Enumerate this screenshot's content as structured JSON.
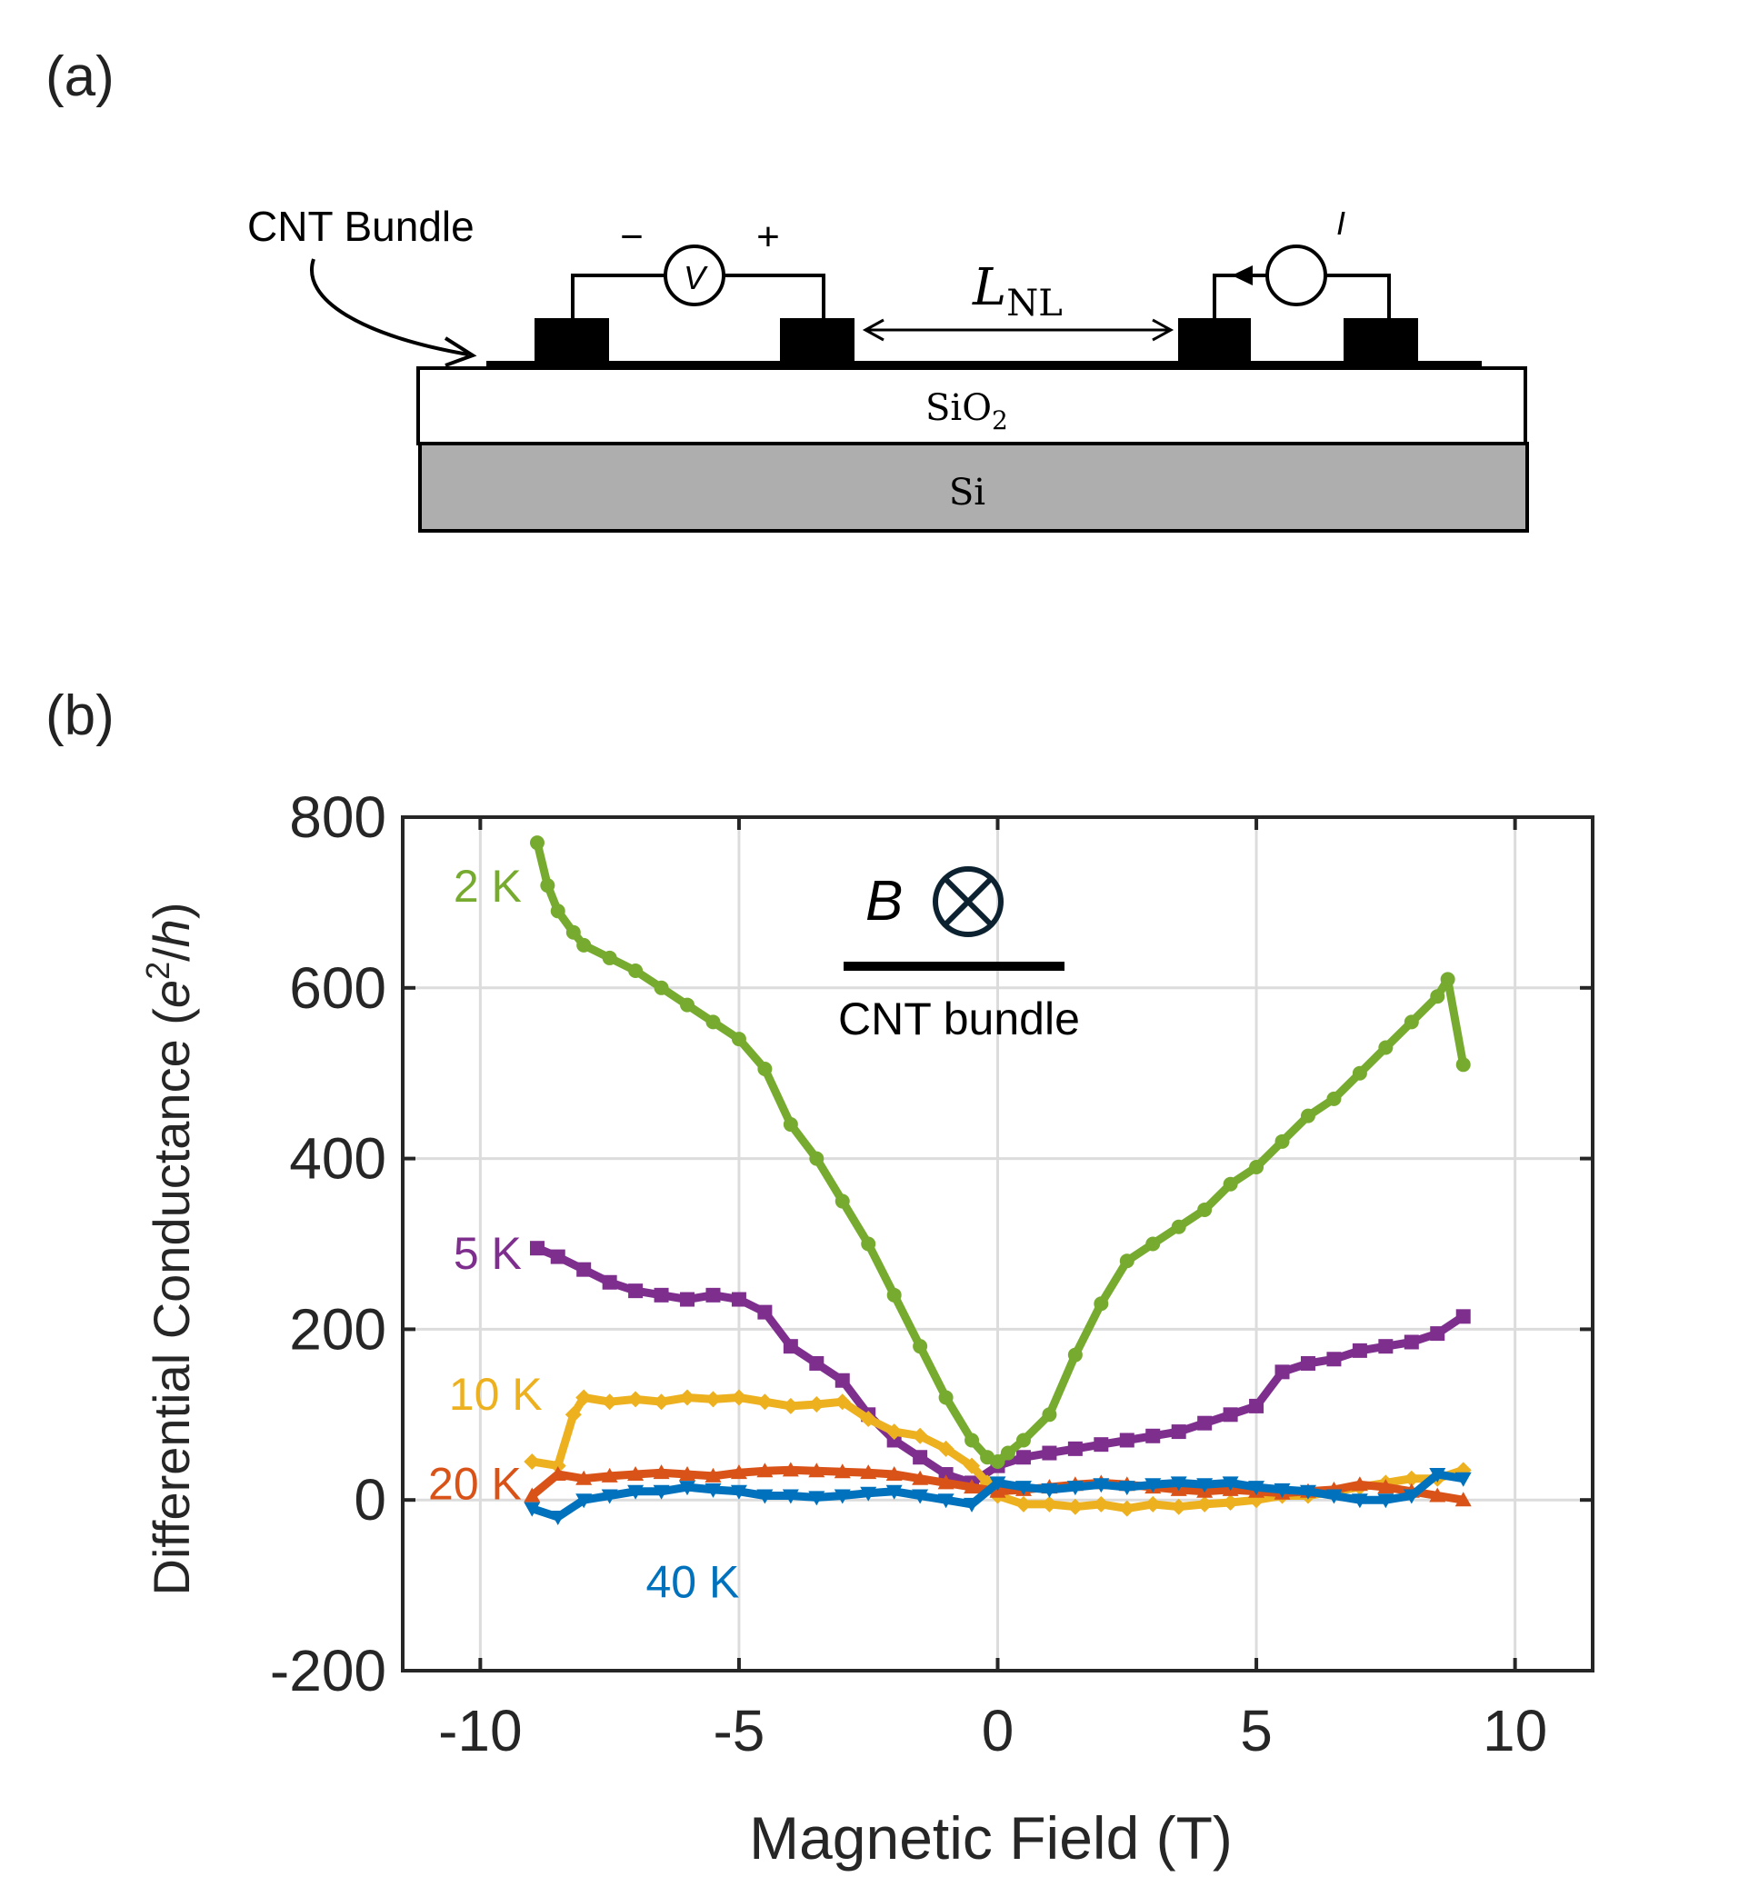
{
  "panel_a": {
    "label": "(a)",
    "cnt_label": "CNT Bundle",
    "minus": "−",
    "plus": "+",
    "voltmeter": "V",
    "current": "I",
    "length_main": "L",
    "length_sub": "NL",
    "sio2_main": "SiO",
    "sio2_sub": "2",
    "si": "Si"
  },
  "panel_b": {
    "label": "(b)",
    "inset_b": "B",
    "inset_caption": "CNT bundle"
  },
  "colors": {
    "2 K": "#76ab2f",
    "5 K": "#7e2f8e",
    "10 K": "#edb120",
    "20 K": "#d95319",
    "40 K": "#0072bd"
  },
  "chart_data": {
    "type": "line",
    "xlabel": "Magnetic Field (T)",
    "ylabel_main": "Differential Conductance (",
    "ylabel_e": "e",
    "ylabel_sup": "2",
    "ylabel_slash": "/",
    "ylabel_h": "h",
    "ylabel_close": ")",
    "xlim": [
      -11.5,
      11.5
    ],
    "ylim": [
      -200,
      800
    ],
    "xticks": [
      -10,
      -5,
      0,
      5,
      10
    ],
    "yticks": [
      -200,
      0,
      200,
      400,
      600,
      800
    ],
    "grid": true,
    "series": [
      {
        "name": "2 K",
        "marker": "dot",
        "x": [
          -8.9,
          -8.7,
          -8.5,
          -8.2,
          -8.0,
          -7.5,
          -7.0,
          -6.5,
          -6.0,
          -5.5,
          -5.0,
          -4.5,
          -4.0,
          -3.5,
          -3.0,
          -2.5,
          -2.0,
          -1.5,
          -1.0,
          -0.5,
          -0.2,
          0.0,
          0.2,
          0.5,
          1.0,
          1.5,
          2.0,
          2.5,
          3.0,
          3.5,
          4.0,
          4.5,
          5.0,
          5.5,
          6.0,
          6.5,
          7.0,
          7.5,
          8.0,
          8.5,
          8.7,
          9.0
        ],
        "y": [
          770,
          720,
          690,
          665,
          650,
          635,
          620,
          600,
          580,
          560,
          540,
          505,
          440,
          400,
          350,
          300,
          240,
          180,
          120,
          70,
          50,
          45,
          55,
          70,
          100,
          170,
          230,
          280,
          300,
          320,
          340,
          370,
          390,
          420,
          450,
          470,
          500,
          530,
          560,
          590,
          610,
          510
        ]
      },
      {
        "name": "5 K",
        "marker": "square",
        "x": [
          -8.9,
          -8.5,
          -8.0,
          -7.5,
          -7.0,
          -6.5,
          -6.0,
          -5.5,
          -5.0,
          -4.5,
          -4.0,
          -3.5,
          -3.0,
          -2.5,
          -2.0,
          -1.5,
          -1.0,
          -0.5,
          0.0,
          0.5,
          1.0,
          1.5,
          2.0,
          2.5,
          3.0,
          3.5,
          4.0,
          4.5,
          5.0,
          5.5,
          6.0,
          6.5,
          7.0,
          7.5,
          8.0,
          8.5,
          9.0
        ],
        "y": [
          295,
          285,
          270,
          255,
          245,
          240,
          235,
          240,
          235,
          220,
          180,
          160,
          140,
          100,
          70,
          50,
          30,
          20,
          40,
          50,
          55,
          60,
          65,
          70,
          75,
          80,
          90,
          100,
          110,
          150,
          160,
          165,
          175,
          180,
          185,
          195,
          215
        ]
      },
      {
        "name": "10 K",
        "marker": "diamond",
        "x": [
          -9.0,
          -8.5,
          -8.2,
          -8.0,
          -7.5,
          -7.0,
          -6.5,
          -6.0,
          -5.5,
          -5.0,
          -4.5,
          -4.0,
          -3.5,
          -3.0,
          -2.5,
          -2.0,
          -1.5,
          -1.0,
          -0.5,
          -0.2,
          0.0,
          0.5,
          1.0,
          1.5,
          2.0,
          2.5,
          3.0,
          3.5,
          4.0,
          4.5,
          5.0,
          5.5,
          6.0,
          6.5,
          7.0,
          7.5,
          8.0,
          8.5,
          9.0
        ],
        "y": [
          45,
          40,
          100,
          120,
          115,
          118,
          115,
          120,
          118,
          120,
          115,
          110,
          112,
          115,
          95,
          80,
          75,
          60,
          40,
          20,
          5,
          -5,
          -5,
          -8,
          -5,
          -10,
          -5,
          -8,
          -5,
          -3,
          0,
          5,
          5,
          10,
          15,
          20,
          25,
          25,
          35
        ]
      },
      {
        "name": "20 K",
        "marker": "triangle",
        "x": [
          -9.0,
          -8.5,
          -8.0,
          -7.5,
          -7.0,
          -6.5,
          -6.0,
          -5.5,
          -5.0,
          -4.5,
          -4.0,
          -3.5,
          -3.0,
          -2.5,
          -2.0,
          -1.5,
          -1.0,
          -0.5,
          0.0,
          0.5,
          1.0,
          1.5,
          2.0,
          2.5,
          3.0,
          3.5,
          4.0,
          4.5,
          5.0,
          5.5,
          6.0,
          6.5,
          7.0,
          7.5,
          8.0,
          8.5,
          9.0
        ],
        "y": [
          5,
          30,
          25,
          28,
          30,
          32,
          30,
          28,
          32,
          34,
          35,
          34,
          33,
          32,
          30,
          25,
          20,
          15,
          10,
          12,
          15,
          18,
          20,
          18,
          15,
          12,
          10,
          12,
          10,
          8,
          10,
          12,
          18,
          15,
          10,
          5,
          0
        ]
      },
      {
        "name": "40 K",
        "marker": "triangle-down",
        "x": [
          -9.0,
          -8.5,
          -8.0,
          -7.5,
          -7.0,
          -6.5,
          -6.0,
          -5.5,
          -5.0,
          -4.5,
          -4.0,
          -3.5,
          -3.0,
          -2.5,
          -2.0,
          -1.5,
          -1.0,
          -0.5,
          0.0,
          0.5,
          1.0,
          1.5,
          2.0,
          2.5,
          3.0,
          3.5,
          4.0,
          4.5,
          5.0,
          5.5,
          6.0,
          6.5,
          7.0,
          7.5,
          8.0,
          8.5,
          9.0
        ],
        "y": [
          -10,
          -20,
          0,
          5,
          10,
          10,
          15,
          12,
          10,
          5,
          5,
          3,
          5,
          8,
          10,
          5,
          0,
          -5,
          20,
          15,
          12,
          15,
          18,
          15,
          18,
          20,
          18,
          20,
          15,
          12,
          10,
          5,
          0,
          0,
          5,
          30,
          25
        ]
      }
    ],
    "series_label_positions": [
      {
        "name": "2 K",
        "x": -9.2,
        "y": 720
      },
      {
        "name": "5 K",
        "x": -9.2,
        "y": 290
      },
      {
        "name": "10 K",
        "x": -8.8,
        "y": 125
      },
      {
        "name": "20 K",
        "x": -9.2,
        "y": 20
      },
      {
        "name": "40 K",
        "x": -6.8,
        "y": -95
      }
    ]
  }
}
